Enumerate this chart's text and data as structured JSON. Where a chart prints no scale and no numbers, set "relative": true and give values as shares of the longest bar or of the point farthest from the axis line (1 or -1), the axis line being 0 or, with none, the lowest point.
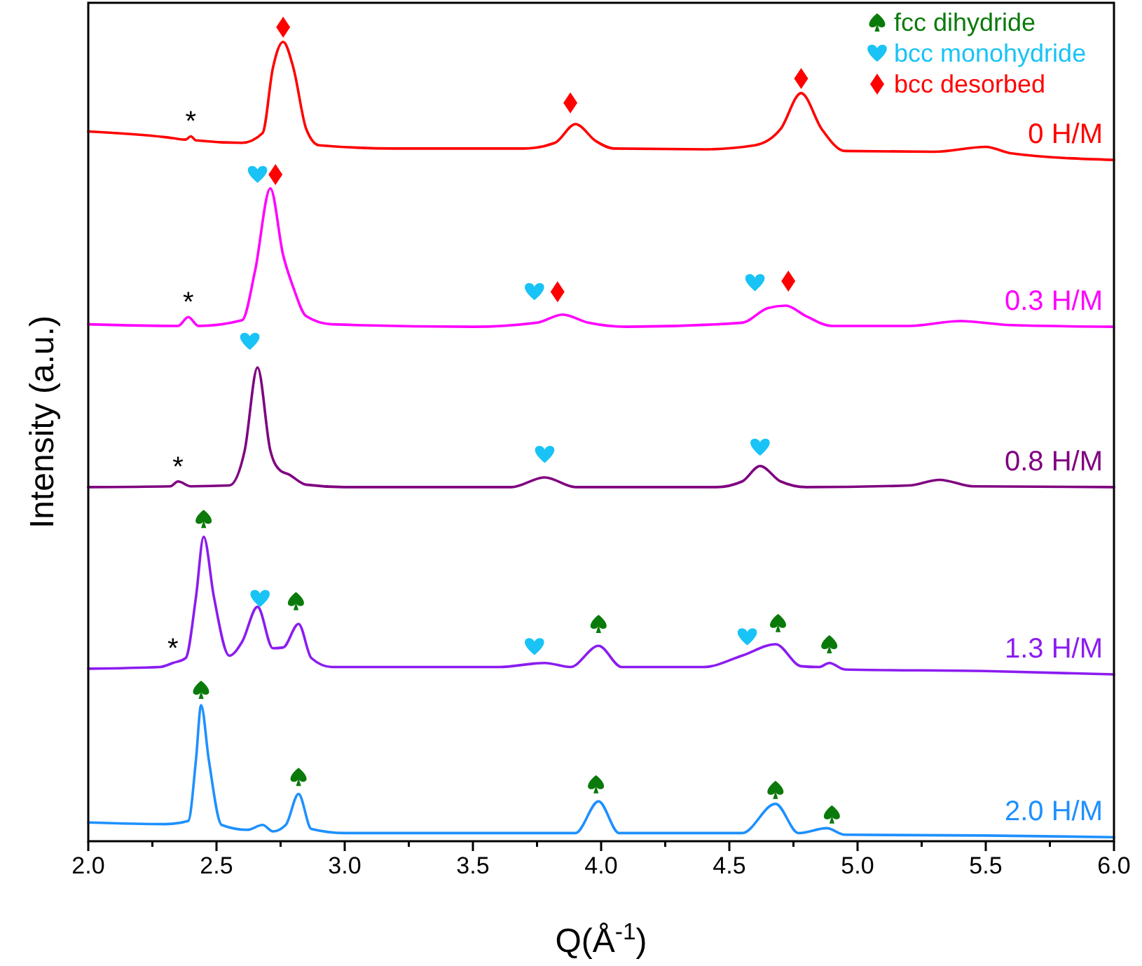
{
  "chart_data": {
    "type": "line",
    "relative": true,
    "xlabel": "Q(Å$^{-1}$)",
    "ylabel": "Intensity (a.u.)",
    "xlim": [
      2.0,
      6.0
    ],
    "xticks": [
      {
        "value": 2.0,
        "label": "2.0"
      },
      {
        "value": 2.25,
        "label": null
      },
      {
        "value": 2.5,
        "label": "2.5"
      },
      {
        "value": 2.75,
        "label": null
      },
      {
        "value": 3.0,
        "label": "3.0"
      },
      {
        "value": 3.25,
        "label": null
      },
      {
        "value": 3.5,
        "label": "3.5"
      },
      {
        "value": 3.75,
        "label": null
      },
      {
        "value": 4.0,
        "label": "4.0"
      },
      {
        "value": 4.25,
        "label": null
      },
      {
        "value": 4.5,
        "label": "4.5"
      },
      {
        "value": 4.75,
        "label": null
      },
      {
        "value": 5.0,
        "label": "5.0"
      },
      {
        "value": 5.25,
        "label": null
      },
      {
        "value": 5.5,
        "label": "5.5"
      },
      {
        "value": 5.75,
        "label": null
      },
      {
        "value": 6.0,
        "label": "6.0"
      }
    ],
    "tick_labels": "x",
    "legend": "top right",
    "line_style": "solid",
    "series": [
      {
        "name": "0 H/M",
        "color": "#ff0000",
        "x": [
          2.0,
          2.3,
          2.38,
          2.4,
          2.42,
          2.6,
          2.68,
          2.72,
          2.76,
          2.8,
          2.85,
          2.9,
          3.2,
          3.7,
          3.82,
          3.9,
          3.98,
          4.05,
          4.4,
          4.6,
          4.7,
          4.78,
          4.86,
          4.95,
          5.3,
          5.5,
          5.6,
          6.0
        ],
        "values": [
          0.872,
          0.865,
          0.862,
          0.866,
          0.861,
          0.858,
          0.87,
          0.95,
          0.982,
          0.95,
          0.875,
          0.855,
          0.851,
          0.851,
          0.858,
          0.881,
          0.86,
          0.851,
          0.85,
          0.855,
          0.875,
          0.919,
          0.875,
          0.848,
          0.847,
          0.853,
          0.845,
          0.837
        ]
      },
      {
        "name": "0.3 H/M",
        "color": "#ff00ff",
        "x": [
          2.0,
          2.35,
          2.39,
          2.43,
          2.6,
          2.65,
          2.71,
          2.76,
          2.8,
          2.85,
          2.95,
          3.5,
          3.75,
          3.85,
          3.95,
          4.1,
          4.55,
          4.65,
          4.72,
          4.8,
          4.9,
          5.2,
          5.4,
          5.6,
          6.0
        ],
        "values": [
          0.635,
          0.633,
          0.644,
          0.633,
          0.64,
          0.7,
          0.802,
          0.72,
          0.68,
          0.645,
          0.635,
          0.632,
          0.637,
          0.647,
          0.637,
          0.632,
          0.637,
          0.655,
          0.658,
          0.645,
          0.633,
          0.633,
          0.639,
          0.634,
          0.632
        ]
      },
      {
        "name": "0.8 H/M",
        "color": "#800080",
        "x": [
          2.0,
          2.32,
          2.35,
          2.4,
          2.55,
          2.61,
          2.66,
          2.71,
          2.75,
          2.78,
          2.85,
          3.0,
          3.65,
          3.78,
          3.9,
          4.45,
          4.55,
          4.62,
          4.7,
          4.8,
          5.2,
          5.32,
          5.45,
          6.0
        ],
        "values": [
          0.435,
          0.436,
          0.442,
          0.436,
          0.437,
          0.48,
          0.582,
          0.48,
          0.455,
          0.451,
          0.438,
          0.435,
          0.435,
          0.447,
          0.435,
          0.435,
          0.442,
          0.461,
          0.442,
          0.435,
          0.437,
          0.444,
          0.436,
          0.435
        ]
      },
      {
        "name": "1.3 H/M",
        "color": "#8b1cf0",
        "x": [
          2.0,
          2.28,
          2.33,
          2.38,
          2.42,
          2.45,
          2.49,
          2.55,
          2.6,
          2.66,
          2.72,
          2.76,
          2.82,
          2.87,
          2.95,
          3.6,
          3.78,
          3.88,
          3.99,
          4.08,
          4.4,
          4.55,
          4.68,
          4.78,
          4.85,
          4.89,
          4.95,
          5.5,
          6.0
        ],
        "values": [
          0.212,
          0.214,
          0.219,
          0.225,
          0.3,
          0.374,
          0.3,
          0.228,
          0.245,
          0.288,
          0.237,
          0.238,
          0.267,
          0.225,
          0.214,
          0.214,
          0.219,
          0.214,
          0.24,
          0.214,
          0.214,
          0.228,
          0.242,
          0.215,
          0.214,
          0.219,
          0.211,
          0.209,
          0.205
        ]
      },
      {
        "name": "2.0 H/M",
        "color": "#1e90ff",
        "x": [
          2.0,
          2.3,
          2.39,
          2.42,
          2.44,
          2.47,
          2.52,
          2.62,
          2.68,
          2.72,
          2.77,
          2.82,
          2.87,
          3.0,
          3.9,
          3.99,
          4.07,
          4.55,
          4.68,
          4.77,
          4.88,
          4.95,
          5.5,
          6.0
        ],
        "values": [
          0.023,
          0.021,
          0.025,
          0.1,
          0.167,
          0.1,
          0.02,
          0.014,
          0.02,
          0.012,
          0.02,
          0.058,
          0.015,
          0.01,
          0.01,
          0.049,
          0.01,
          0.01,
          0.046,
          0.01,
          0.016,
          0.008,
          0.007,
          0.005
        ]
      },
      {
        "type": "scatter",
        "name": "fcc dihydride",
        "color": "#0a7a0a",
        "x": [
          2.45,
          2.81,
          3.99,
          4.69,
          4.89,
          2.44,
          2.82,
          3.98,
          4.68,
          4.9
        ],
        "values": [
          0.396,
          0.295,
          0.267,
          0.268,
          0.242,
          0.186,
          0.079,
          0.07,
          0.063,
          0.033
        ]
      },
      {
        "type": "scatter",
        "name": "bcc monohydride",
        "color": "#19c3f5",
        "x": [
          2.66,
          3.74,
          4.6,
          2.63,
          3.78,
          4.62,
          2.67,
          3.74,
          4.57
        ],
        "values": [
          0.819,
          0.675,
          0.686,
          0.614,
          0.475,
          0.484,
          0.298,
          0.239,
          0.251
        ]
      },
      {
        "type": "scatter",
        "name": "bcc desorbed",
        "color": "#ff0000",
        "marker": "diamond",
        "x": [
          2.76,
          3.88,
          4.78,
          2.73,
          3.83,
          4.73
        ],
        "values": [
          1.0,
          0.907,
          0.937,
          0.819,
          0.675,
          0.688
        ]
      }
    ],
    "annotations": [
      {
        "text": "*",
        "x": 2.4,
        "y": 0.866
      },
      {
        "text": "*",
        "x": 2.39,
        "y": 0.644
      },
      {
        "text": "*",
        "x": 2.35,
        "y": 0.442
      },
      {
        "text": "*",
        "x": 2.33,
        "y": 0.219
      }
    ]
  }
}
